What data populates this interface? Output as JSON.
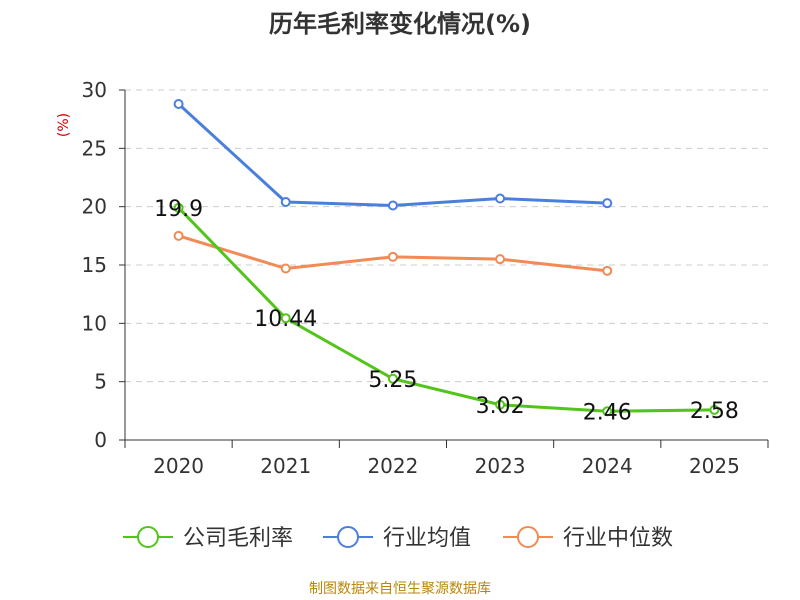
{
  "chart_data": {
    "type": "line",
    "title": "历年毛利率变化情况(%)",
    "ylabel": "(%)",
    "categories": [
      "2020",
      "2021",
      "2022",
      "2023",
      "2024",
      "2025"
    ],
    "ylim": [
      0,
      30
    ],
    "yticks": [
      0,
      5,
      10,
      15,
      20,
      25,
      30
    ],
    "grid": true,
    "legend_position": "bottom",
    "series": [
      {
        "name": "公司毛利率",
        "color": "#52c41a",
        "values": [
          19.9,
          10.44,
          5.25,
          3.02,
          2.46,
          2.58
        ],
        "labels": [
          "19.9",
          "10.44",
          "5.25",
          "3.02",
          "2.46",
          "2.58"
        ]
      },
      {
        "name": "行业均值",
        "color": "#4a7fdc",
        "values": [
          28.8,
          20.4,
          20.1,
          20.7,
          20.3,
          null
        ]
      },
      {
        "name": "行业中位数",
        "color": "#f28a55",
        "values": [
          17.5,
          14.7,
          15.7,
          15.5,
          14.5,
          null
        ]
      }
    ]
  },
  "source": "制图数据来自恒生聚源数据库"
}
